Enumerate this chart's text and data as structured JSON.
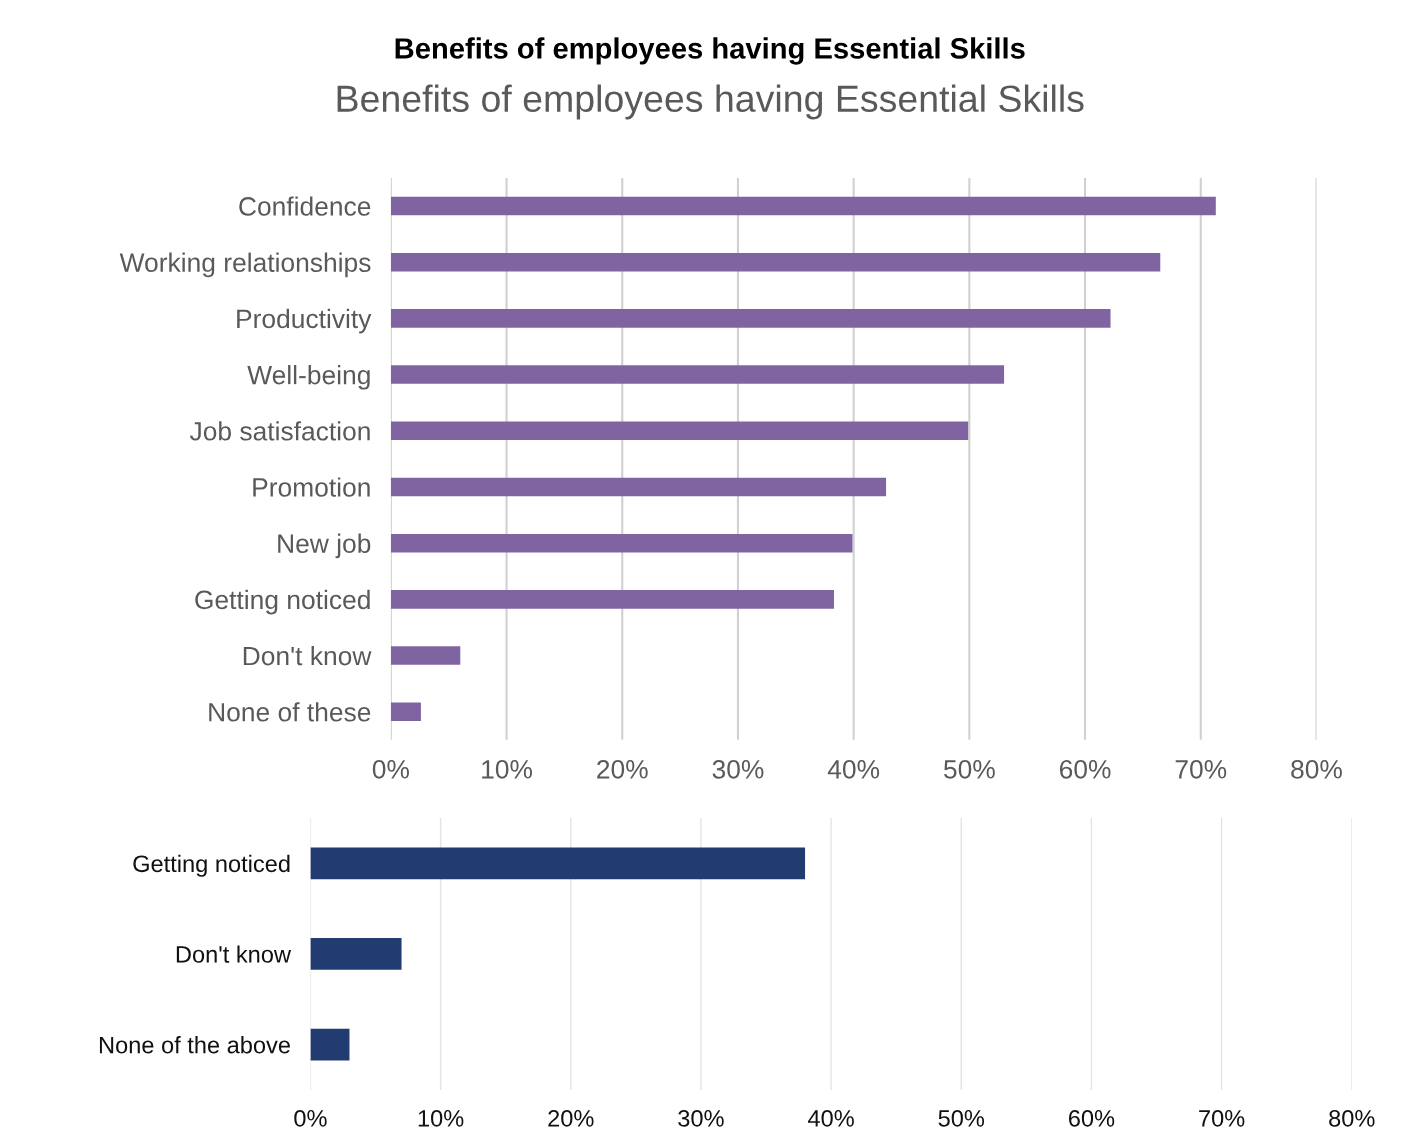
{
  "chart_data": [
    {
      "type": "bar",
      "orientation": "horizontal",
      "title": "Benefits of employees having Essential Skills",
      "subtitle": "Benefits of employees having Essential Skills",
      "categories": [
        "Confidence",
        "Working relationships",
        "Productivity",
        "Well-being",
        "Job satisfaction",
        "Promotion",
        "New job",
        "Getting noticed",
        "Don't know",
        "None of these"
      ],
      "values": [
        71.3,
        66.5,
        62.2,
        53.0,
        49.9,
        42.8,
        39.9,
        38.3,
        6.0,
        2.6
      ],
      "color": "#8064a2",
      "xlim": [
        0,
        80
      ],
      "xticks": [
        {
          "value": 0,
          "label": "0%"
        },
        {
          "value": 10,
          "label": "10%"
        },
        {
          "value": 20,
          "label": "20%"
        },
        {
          "value": 30,
          "label": "30%"
        },
        {
          "value": 40,
          "label": "40%"
        },
        {
          "value": 50,
          "label": "50%"
        },
        {
          "value": 60,
          "label": "60%"
        },
        {
          "value": 70,
          "label": "70%"
        },
        {
          "value": 80,
          "label": "80%"
        }
      ],
      "grid": "x",
      "legend": false
    },
    {
      "type": "bar",
      "orientation": "horizontal",
      "categories": [
        "Getting noticed",
        "Don't know",
        "None of the above"
      ],
      "values": [
        38.0,
        7.0,
        3.0
      ],
      "color": "#223b70",
      "xlim": [
        0,
        80
      ],
      "xticks": [
        {
          "value": 0,
          "label": "0%"
        },
        {
          "value": 10,
          "label": "10%"
        },
        {
          "value": 20,
          "label": "20%"
        },
        {
          "value": 30,
          "label": "30%"
        },
        {
          "value": 40,
          "label": "40%"
        },
        {
          "value": 50,
          "label": "50%"
        },
        {
          "value": 60,
          "label": "60%"
        },
        {
          "value": 70,
          "label": "70%"
        },
        {
          "value": 80,
          "label": "80%"
        }
      ],
      "grid": "x",
      "legend": false
    }
  ]
}
